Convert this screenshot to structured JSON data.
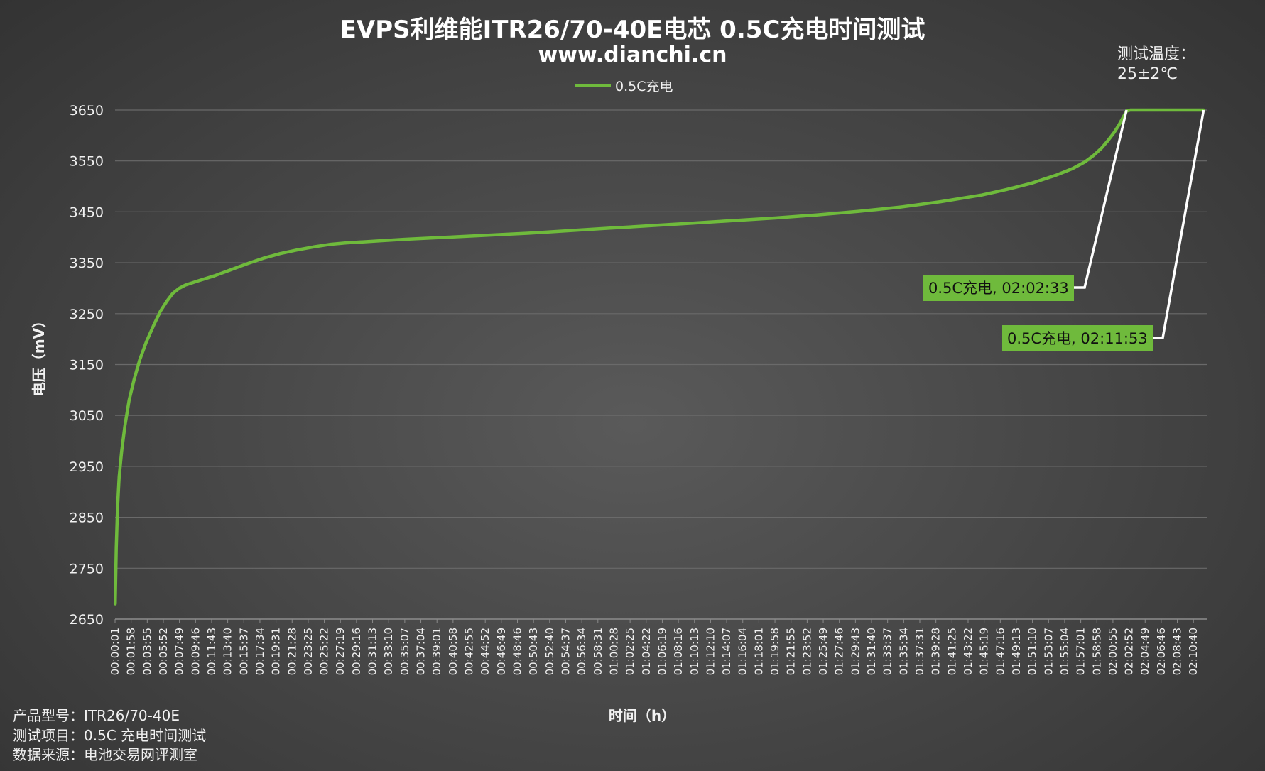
{
  "title": "EVPS利维能ITR26/70-40E电芯 0.5C充电时间测试",
  "subtitle": "www.dianchi.cn",
  "temperature": {
    "label": "测试温度：",
    "value": "25±2℃"
  },
  "footer": [
    "产品型号：ITR26/70-40E",
    "测试项目：0.5C 充电时间测试",
    "数据来源：电池交易网评测室"
  ],
  "colors": {
    "series": "#6fba3c",
    "grid": "#6a6a6a",
    "leader": "#ffffff",
    "annotation_bg": "#6fba3c"
  },
  "chart_data": {
    "type": "line",
    "xlabel": "时间（h）",
    "ylabel": "电压（mV）",
    "ylim": [
      2650,
      3650
    ],
    "yticks": [
      2650,
      2750,
      2850,
      2950,
      3050,
      3150,
      3250,
      3350,
      3450,
      3550,
      3650
    ],
    "grid": true,
    "legend": "top-center",
    "x_tick_labels": [
      "00:00:01",
      "00:01:58",
      "00:03:55",
      "00:05:52",
      "00:07:49",
      "00:09:46",
      "00:11:43",
      "00:13:40",
      "00:15:37",
      "00:17:34",
      "00:19:31",
      "00:21:28",
      "00:23:25",
      "00:25:22",
      "00:27:19",
      "00:29:16",
      "00:31:13",
      "00:33:10",
      "00:35:07",
      "00:37:04",
      "00:39:01",
      "00:40:58",
      "00:42:55",
      "00:44:52",
      "00:46:49",
      "00:48:46",
      "00:50:43",
      "00:52:40",
      "00:54:37",
      "00:56:34",
      "00:58:31",
      "01:00:28",
      "01:02:25",
      "01:04:22",
      "01:06:19",
      "01:08:16",
      "01:10:13",
      "01:12:10",
      "01:14:07",
      "01:16:04",
      "01:18:01",
      "01:19:58",
      "01:21:55",
      "01:23:52",
      "01:25:49",
      "01:27:46",
      "01:29:43",
      "01:31:40",
      "01:33:37",
      "01:35:34",
      "01:37:31",
      "01:39:28",
      "01:41:25",
      "01:43:22",
      "01:45:19",
      "01:47:16",
      "01:49:13",
      "01:51:10",
      "01:53:07",
      "01:55:04",
      "01:57:01",
      "01:58:58",
      "02:00:55",
      "02:02:52",
      "02:04:49",
      "02:06:46",
      "02:08:43",
      "02:10:40"
    ],
    "series": [
      {
        "name": "0.5C充电",
        "x_minutes": [
          0.02,
          0.15,
          0.3,
          0.5,
          0.8,
          1.2,
          1.7,
          2.3,
          3.0,
          3.8,
          4.7,
          5.5,
          6.3,
          7.0,
          7.8,
          8.5,
          10,
          12,
          14,
          16,
          18,
          20,
          22,
          24,
          26,
          28,
          30,
          32,
          35,
          40,
          45,
          50,
          55,
          60,
          65,
          70,
          75,
          80,
          85,
          90,
          95,
          100,
          105,
          108,
          111,
          114,
          116,
          117.5,
          118.5,
          119.5,
          120.3,
          121,
          121.6,
          122.1,
          122.55,
          123,
          127,
          131.88
        ],
        "y": [
          2680,
          2790,
          2870,
          2930,
          2980,
          3030,
          3080,
          3120,
          3160,
          3195,
          3228,
          3255,
          3275,
          3290,
          3300,
          3306,
          3314,
          3324,
          3336,
          3348,
          3359,
          3368,
          3375,
          3381,
          3386,
          3389,
          3391,
          3393,
          3396,
          3400,
          3404,
          3408,
          3413,
          3418,
          3423,
          3428,
          3433,
          3438,
          3444,
          3451,
          3459,
          3470,
          3483,
          3494,
          3506,
          3522,
          3535,
          3548,
          3560,
          3575,
          3590,
          3605,
          3620,
          3635,
          3648,
          3650,
          3650,
          3650
        ]
      }
    ],
    "annotations": [
      {
        "label": "0.5C充电, 02:02:33",
        "x": "02:02:33",
        "y": 3650
      },
      {
        "label": "0.5C充电, 02:11:53",
        "x": "02:11:53",
        "y": 3650
      }
    ]
  }
}
